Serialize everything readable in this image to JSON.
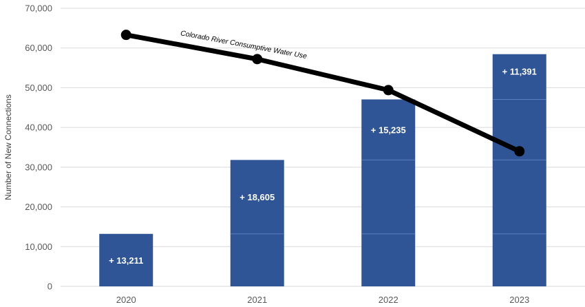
{
  "chart_data": {
    "type": "bar",
    "categories": [
      "2020",
      "2021",
      "2022",
      "2023"
    ],
    "stack_segments": [
      [
        13211,
        0,
        0,
        0
      ],
      [
        13211,
        18605,
        0,
        0
      ],
      [
        13211,
        18605,
        15235,
        0
      ],
      [
        13211,
        18605,
        15235,
        11391
      ]
    ],
    "bar_totals": [
      13211,
      31816,
      47051,
      58442
    ],
    "bar_labels": [
      "+ 13,211",
      "+ 18,605",
      "+ 15,235",
      "+ 11,391"
    ],
    "line": {
      "name": "Colorado River Consumptive Water Use",
      "values": [
        63300,
        57200,
        49400,
        34000
      ]
    },
    "ylabel": "Number of New Connections",
    "xlabel": "",
    "ylim": [
      0,
      70000
    ],
    "yticks": [
      0,
      10000,
      20000,
      30000,
      40000,
      50000,
      60000,
      70000
    ],
    "ytick_labels": [
      "0",
      "10,000",
      "20,000",
      "30,000",
      "40,000",
      "50,000",
      "60,000",
      "70,000"
    ],
    "grid": true,
    "colors": {
      "bar": "#2f5597",
      "segment_divider": "#5b7fbf",
      "line": "#000000",
      "grid": "#d9d9d9"
    }
  }
}
